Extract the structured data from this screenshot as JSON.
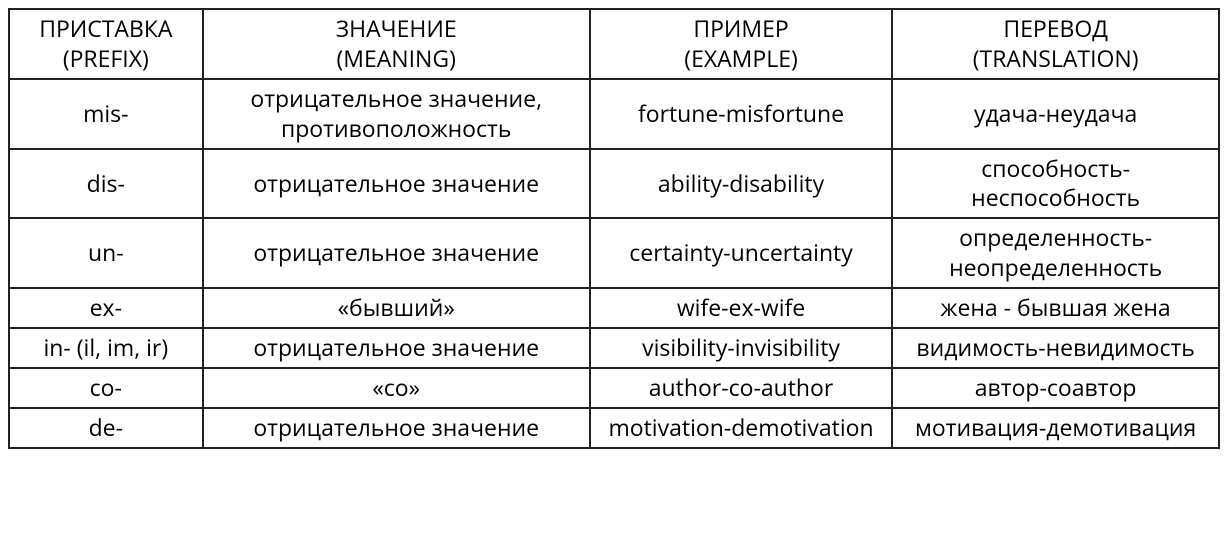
{
  "table": {
    "border_color": "#222222",
    "background_color": "#ffffff",
    "text_color": "#000000",
    "font_size_pt": 17,
    "columns": [
      {
        "key": "prefix",
        "line1": "ПРИСТАВКА",
        "line2": "(PREFIX)",
        "width_pct": 16,
        "align": "center"
      },
      {
        "key": "meaning",
        "line1": "ЗНАЧЕНИЕ",
        "line2": "(MEANING)",
        "width_pct": 32,
        "align": "center"
      },
      {
        "key": "example",
        "line1": "ПРИМЕР",
        "line2": "(EXAMPLE)",
        "width_pct": 25,
        "align": "center"
      },
      {
        "key": "translation",
        "line1": "ПЕРЕВОД",
        "line2": "(TRANSLATION)",
        "width_pct": 27,
        "align": "center"
      }
    ],
    "rows": [
      {
        "prefix": "mis-",
        "meaning": "отрицательное значение, противоположность",
        "example": "fortune-misfortune",
        "translation": "удача-неудача"
      },
      {
        "prefix": "dis-",
        "meaning": "отрицательное значение",
        "example": "ability-disability",
        "translation": "способность-неспособность"
      },
      {
        "prefix": "un-",
        "meaning": "отрицательное значение",
        "example": "certainty-uncertainty",
        "translation": "определенность-неопределенность"
      },
      {
        "prefix": "ex-",
        "meaning": "«бывший»",
        "example": "wife-ex-wife",
        "translation": "жена - бывшая жена"
      },
      {
        "prefix": "in- (il, im, ir)",
        "meaning": "отрицательное значение",
        "example": "visibility-invisibility",
        "translation": "видимость-невидимость"
      },
      {
        "prefix": "co-",
        "meaning": "«со»",
        "example": "author-co-author",
        "translation": "автор-соавтор"
      },
      {
        "prefix": "de-",
        "meaning": "отрицательное значение",
        "example": "motivation-demotivation",
        "translation": "мотивация-демотивация"
      }
    ]
  }
}
